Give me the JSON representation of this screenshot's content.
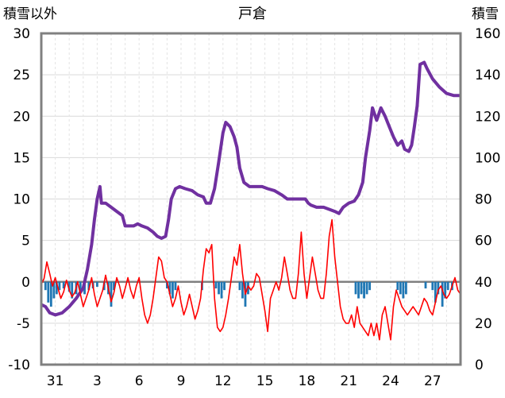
{
  "chart_data": {
    "type": "line",
    "title": "戸倉",
    "left_axis": {
      "label": "積雪以外",
      "range": [
        -10,
        30
      ],
      "ticks": [
        -10,
        -5,
        0,
        5,
        10,
        15,
        20,
        25,
        30
      ]
    },
    "right_axis": {
      "label": "積雪",
      "range": [
        0,
        160
      ],
      "ticks": [
        0,
        20,
        40,
        60,
        80,
        100,
        120,
        140,
        160
      ]
    },
    "x_tick_labels": [
      "31",
      "3",
      "6",
      "9",
      "12",
      "15",
      "18",
      "21",
      "24",
      "27"
    ],
    "x_tick_days": [
      1,
      4,
      7,
      10,
      13,
      16,
      19,
      22,
      25,
      28
    ],
    "x_range": [
      0,
      30
    ],
    "grid": true,
    "series": [
      {
        "axis": "right",
        "color": "#7030A0",
        "points": [
          [
            0.0,
            29
          ],
          [
            0.3,
            28
          ],
          [
            0.6,
            25
          ],
          [
            1.0,
            24
          ],
          [
            1.5,
            25
          ],
          [
            2.0,
            28
          ],
          [
            2.5,
            32
          ],
          [
            3.0,
            37
          ],
          [
            3.3,
            46
          ],
          [
            3.6,
            58
          ],
          [
            3.8,
            70
          ],
          [
            4.0,
            80
          ],
          [
            4.2,
            86
          ],
          [
            4.3,
            78
          ],
          [
            4.6,
            78
          ],
          [
            5.0,
            76
          ],
          [
            5.4,
            74
          ],
          [
            5.8,
            72
          ],
          [
            6.0,
            67
          ],
          [
            6.2,
            67
          ],
          [
            6.6,
            67
          ],
          [
            6.9,
            68
          ],
          [
            7.2,
            67
          ],
          [
            7.6,
            66
          ],
          [
            8.0,
            64
          ],
          [
            8.3,
            62
          ],
          [
            8.6,
            61
          ],
          [
            8.9,
            62
          ],
          [
            9.1,
            70
          ],
          [
            9.3,
            80
          ],
          [
            9.6,
            85
          ],
          [
            9.9,
            86
          ],
          [
            10.3,
            85
          ],
          [
            10.8,
            84
          ],
          [
            11.2,
            82
          ],
          [
            11.6,
            81
          ],
          [
            11.8,
            78
          ],
          [
            12.1,
            78
          ],
          [
            12.4,
            85
          ],
          [
            12.7,
            98
          ],
          [
            13.0,
            112
          ],
          [
            13.2,
            117
          ],
          [
            13.5,
            115
          ],
          [
            13.8,
            110
          ],
          [
            14.0,
            105
          ],
          [
            14.2,
            95
          ],
          [
            14.5,
            88
          ],
          [
            14.9,
            86
          ],
          [
            15.3,
            86
          ],
          [
            15.8,
            86
          ],
          [
            16.2,
            85
          ],
          [
            16.7,
            84
          ],
          [
            17.2,
            82
          ],
          [
            17.6,
            80
          ],
          [
            18.0,
            80
          ],
          [
            18.5,
            80
          ],
          [
            18.9,
            80
          ],
          [
            19.1,
            78
          ],
          [
            19.3,
            77
          ],
          [
            19.7,
            76
          ],
          [
            20.2,
            76
          ],
          [
            20.6,
            75
          ],
          [
            21.0,
            74
          ],
          [
            21.3,
            73
          ],
          [
            21.6,
            76
          ],
          [
            22.0,
            78
          ],
          [
            22.4,
            79
          ],
          [
            22.7,
            82
          ],
          [
            23.0,
            88
          ],
          [
            23.2,
            100
          ],
          [
            23.5,
            113
          ],
          [
            23.7,
            124
          ],
          [
            24.0,
            118
          ],
          [
            24.3,
            124
          ],
          [
            24.6,
            120
          ],
          [
            24.9,
            115
          ],
          [
            25.2,
            110
          ],
          [
            25.5,
            106
          ],
          [
            25.8,
            108
          ],
          [
            26.0,
            104
          ],
          [
            26.3,
            103
          ],
          [
            26.5,
            106
          ],
          [
            26.7,
            115
          ],
          [
            26.9,
            125
          ],
          [
            27.1,
            145
          ],
          [
            27.4,
            146
          ],
          [
            27.6,
            143
          ],
          [
            28.0,
            138
          ],
          [
            28.5,
            134
          ],
          [
            29.0,
            131
          ],
          [
            29.5,
            130
          ],
          [
            29.8,
            130
          ],
          [
            30.0,
            130
          ]
        ],
        "spikes": [
          [
            4.35,
            0
          ],
          [
            6.05,
            0
          ],
          [
            25.2,
            0
          ],
          [
            27.0,
            0
          ]
        ]
      },
      {
        "axis": "left",
        "color": "#FF0000",
        "points": [
          [
            0.0,
            -0.3
          ],
          [
            0.2,
            0.4
          ],
          [
            0.4,
            2.4
          ],
          [
            0.6,
            1.0
          ],
          [
            0.8,
            -0.5
          ],
          [
            1.0,
            0.5
          ],
          [
            1.2,
            -0.8
          ],
          [
            1.4,
            -2.0
          ],
          [
            1.6,
            -1.2
          ],
          [
            1.8,
            0.2
          ],
          [
            2.0,
            -1.0
          ],
          [
            2.2,
            -1.8
          ],
          [
            2.4,
            -1.3
          ],
          [
            2.6,
            0.0
          ],
          [
            2.8,
            -1.5
          ],
          [
            3.0,
            -3.0
          ],
          [
            3.2,
            -2.0
          ],
          [
            3.4,
            -1.0
          ],
          [
            3.6,
            0.5
          ],
          [
            3.8,
            -1.5
          ],
          [
            4.0,
            -3.0
          ],
          [
            4.2,
            -2.0
          ],
          [
            4.4,
            -1.0
          ],
          [
            4.6,
            0.8
          ],
          [
            4.8,
            -0.8
          ],
          [
            5.0,
            -2.4
          ],
          [
            5.2,
            -1.3
          ],
          [
            5.4,
            0.5
          ],
          [
            5.6,
            -0.5
          ],
          [
            5.8,
            -2.0
          ],
          [
            6.0,
            -0.8
          ],
          [
            6.2,
            0.5
          ],
          [
            6.4,
            -1.0
          ],
          [
            6.6,
            -2.0
          ],
          [
            6.8,
            -0.5
          ],
          [
            7.0,
            0.5
          ],
          [
            7.2,
            -2.0
          ],
          [
            7.4,
            -4.0
          ],
          [
            7.6,
            -5.0
          ],
          [
            7.8,
            -4.0
          ],
          [
            8.0,
            -2.0
          ],
          [
            8.2,
            0.5
          ],
          [
            8.4,
            3.0
          ],
          [
            8.6,
            2.5
          ],
          [
            8.8,
            0.5
          ],
          [
            9.0,
            0.0
          ],
          [
            9.2,
            -1.5
          ],
          [
            9.4,
            -3.0
          ],
          [
            9.6,
            -2.0
          ],
          [
            9.8,
            -0.5
          ],
          [
            10.0,
            -2.5
          ],
          [
            10.2,
            -4.0
          ],
          [
            10.4,
            -3.0
          ],
          [
            10.6,
            -1.5
          ],
          [
            10.8,
            -3.0
          ],
          [
            11.0,
            -4.5
          ],
          [
            11.2,
            -3.5
          ],
          [
            11.4,
            -2.0
          ],
          [
            11.6,
            1.5
          ],
          [
            11.8,
            4.0
          ],
          [
            12.0,
            3.5
          ],
          [
            12.2,
            4.5
          ],
          [
            12.4,
            -2.0
          ],
          [
            12.6,
            -5.5
          ],
          [
            12.8,
            -6.0
          ],
          [
            13.0,
            -5.5
          ],
          [
            13.2,
            -4.0
          ],
          [
            13.4,
            -2.0
          ],
          [
            13.6,
            0.5
          ],
          [
            13.8,
            3.0
          ],
          [
            14.0,
            2.0
          ],
          [
            14.2,
            4.5
          ],
          [
            14.4,
            1.0
          ],
          [
            14.6,
            -1.5
          ],
          [
            14.8,
            -0.5
          ],
          [
            15.0,
            -1.0
          ],
          [
            15.2,
            -0.5
          ],
          [
            15.4,
            1.0
          ],
          [
            15.6,
            0.5
          ],
          [
            15.8,
            -1.5
          ],
          [
            16.0,
            -3.5
          ],
          [
            16.2,
            -6.0
          ],
          [
            16.4,
            -2.0
          ],
          [
            16.6,
            -1.0
          ],
          [
            16.8,
            0.0
          ],
          [
            17.0,
            -1.0
          ],
          [
            17.2,
            0.5
          ],
          [
            17.4,
            3.0
          ],
          [
            17.6,
            1.0
          ],
          [
            17.8,
            -1.0
          ],
          [
            18.0,
            -2.0
          ],
          [
            18.2,
            -2.0
          ],
          [
            18.4,
            1.0
          ],
          [
            18.6,
            6.0
          ],
          [
            18.8,
            1.0
          ],
          [
            19.0,
            -2.0
          ],
          [
            19.2,
            0.5
          ],
          [
            19.4,
            3.0
          ],
          [
            19.6,
            1.0
          ],
          [
            19.8,
            -1.0
          ],
          [
            20.0,
            -2.0
          ],
          [
            20.2,
            -2.0
          ],
          [
            20.4,
            1.0
          ],
          [
            20.6,
            5.5
          ],
          [
            20.8,
            7.5
          ],
          [
            21.0,
            3.0
          ],
          [
            21.2,
            0.0
          ],
          [
            21.4,
            -3.0
          ],
          [
            21.6,
            -4.5
          ],
          [
            21.8,
            -5.0
          ],
          [
            22.0,
            -5.0
          ],
          [
            22.2,
            -4.0
          ],
          [
            22.4,
            -5.5
          ],
          [
            22.6,
            -3.0
          ],
          [
            22.8,
            -5.0
          ],
          [
            23.0,
            -5.5
          ],
          [
            23.2,
            -6.0
          ],
          [
            23.4,
            -6.5
          ],
          [
            23.6,
            -5.0
          ],
          [
            23.8,
            -6.5
          ],
          [
            24.0,
            -5.0
          ],
          [
            24.2,
            -7.0
          ],
          [
            24.4,
            -4.0
          ],
          [
            24.6,
            -3.0
          ],
          [
            24.8,
            -5.0
          ],
          [
            25.0,
            -7.0
          ],
          [
            25.2,
            -3.0
          ],
          [
            25.4,
            -1.0
          ],
          [
            25.6,
            -2.0
          ],
          [
            25.8,
            -3.0
          ],
          [
            26.0,
            -3.5
          ],
          [
            26.2,
            -4.0
          ],
          [
            26.4,
            -3.5
          ],
          [
            26.6,
            -3.0
          ],
          [
            26.8,
            -3.5
          ],
          [
            27.0,
            -4.0
          ],
          [
            27.2,
            -3.0
          ],
          [
            27.4,
            -2.0
          ],
          [
            27.6,
            -2.5
          ],
          [
            27.8,
            -3.5
          ],
          [
            28.0,
            -4.0
          ],
          [
            28.2,
            -2.5
          ],
          [
            28.4,
            -1.0
          ],
          [
            28.6,
            -0.5
          ],
          [
            28.8,
            -1.5
          ],
          [
            29.0,
            -2.0
          ],
          [
            29.2,
            -1.5
          ],
          [
            29.4,
            -0.5
          ],
          [
            29.6,
            0.5
          ],
          [
            29.8,
            -1.0
          ],
          [
            30.0,
            -1.5
          ]
        ]
      },
      {
        "axis": "left",
        "type": "bar",
        "color": "#1F77B4",
        "bars": [
          [
            0.3,
            -1.0
          ],
          [
            0.5,
            -2.5
          ],
          [
            0.7,
            -3.0
          ],
          [
            0.9,
            -2.0
          ],
          [
            1.1,
            -1.5
          ],
          [
            1.3,
            -1.0
          ],
          [
            1.6,
            -0.8
          ],
          [
            2.0,
            -1.2
          ],
          [
            2.2,
            -2.0
          ],
          [
            2.5,
            -1.5
          ],
          [
            2.8,
            -1.0
          ],
          [
            3.1,
            -1.5
          ],
          [
            3.4,
            -1.0
          ],
          [
            3.7,
            -0.8
          ],
          [
            4.0,
            -0.6
          ],
          [
            4.5,
            -1.0
          ],
          [
            4.8,
            -1.5
          ],
          [
            5.0,
            -3.0
          ],
          [
            5.2,
            -1.0
          ],
          [
            9.0,
            -0.8
          ],
          [
            9.2,
            -1.5
          ],
          [
            9.4,
            -2.0
          ],
          [
            9.6,
            -1.0
          ],
          [
            11.5,
            -1.0
          ],
          [
            12.5,
            -0.8
          ],
          [
            12.7,
            -1.5
          ],
          [
            12.9,
            -2.0
          ],
          [
            13.1,
            -1.0
          ],
          [
            14.2,
            -1.0
          ],
          [
            14.4,
            -2.0
          ],
          [
            14.6,
            -3.0
          ],
          [
            14.8,
            -1.5
          ],
          [
            22.5,
            -1.5
          ],
          [
            22.7,
            -2.0
          ],
          [
            22.9,
            -1.5
          ],
          [
            23.1,
            -2.0
          ],
          [
            23.3,
            -1.5
          ],
          [
            23.5,
            -1.0
          ],
          [
            25.5,
            -1.0
          ],
          [
            25.7,
            -1.5
          ],
          [
            25.9,
            -2.0
          ],
          [
            26.1,
            -1.5
          ],
          [
            27.5,
            -0.8
          ],
          [
            28.0,
            -1.0
          ],
          [
            28.2,
            -2.5
          ],
          [
            28.4,
            -1.5
          ],
          [
            28.7,
            -3.0
          ],
          [
            28.9,
            -2.0
          ],
          [
            29.1,
            -1.0
          ],
          [
            29.4,
            -1.0
          ]
        ]
      }
    ]
  }
}
